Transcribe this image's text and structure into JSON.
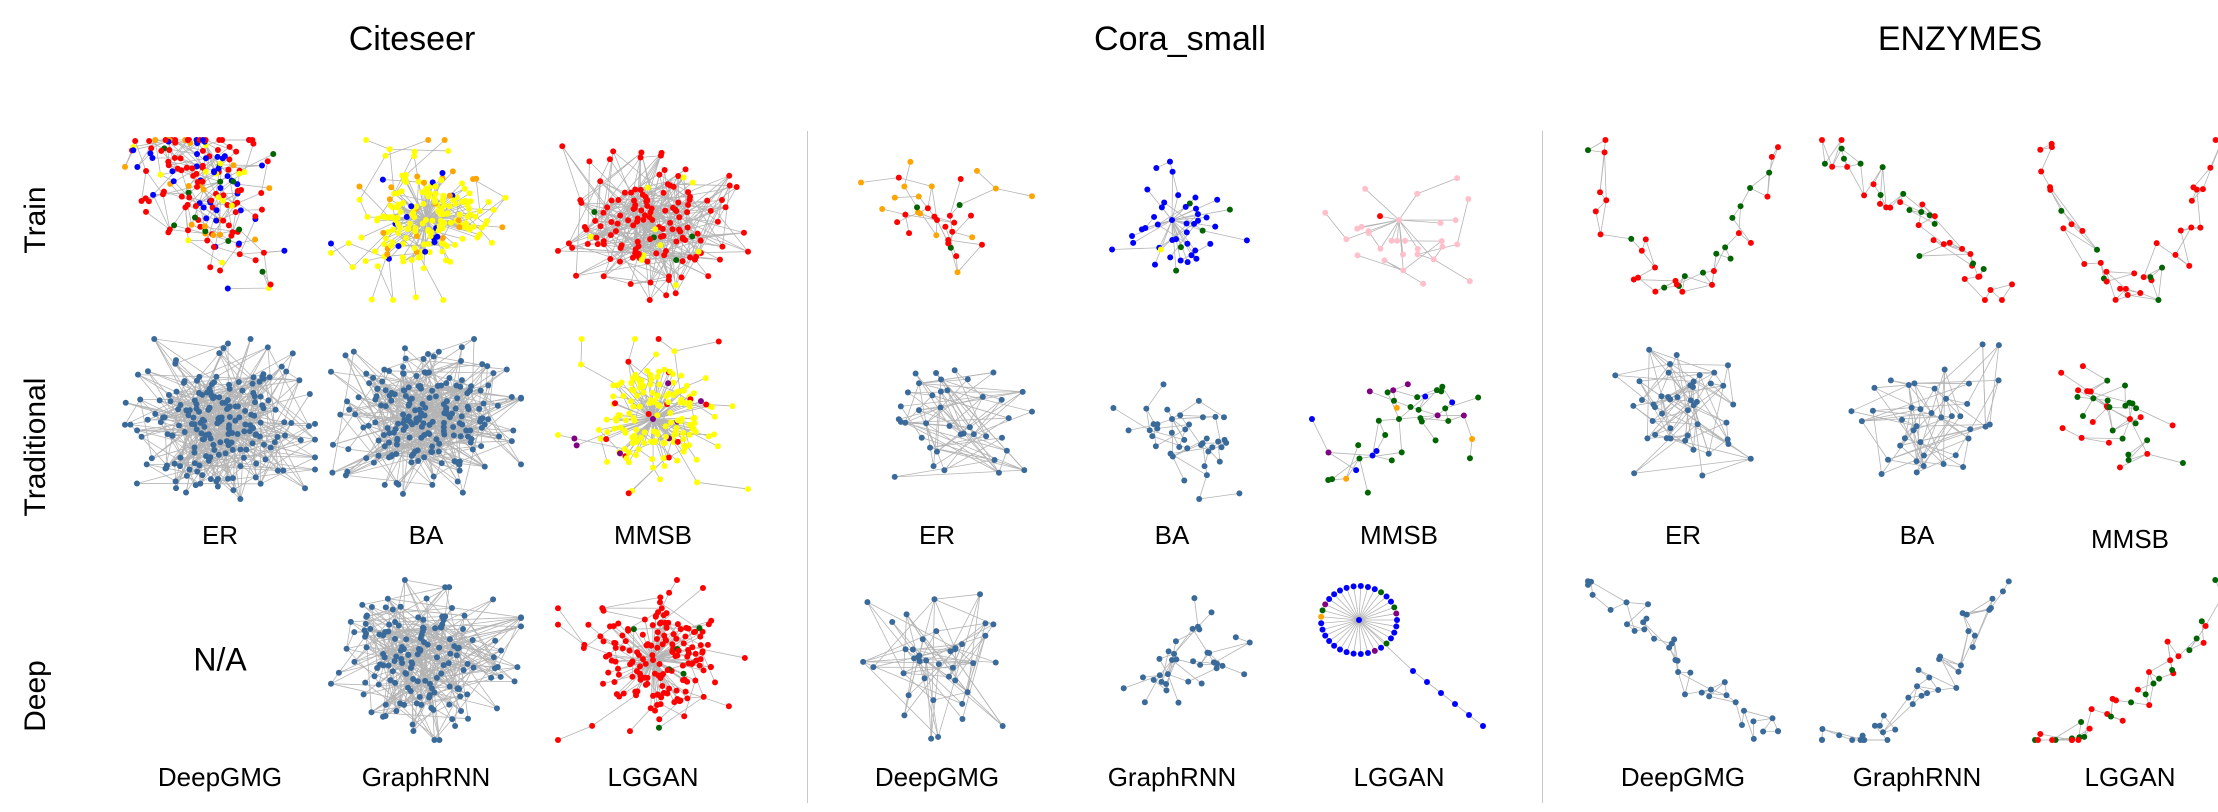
{
  "datasets": [
    "Citeseer",
    "Cora_small",
    "ENZYMES"
  ],
  "rows": [
    "Train",
    "Traditional",
    "Deep"
  ],
  "traditional_methods": [
    "ER",
    "BA",
    "MMSB"
  ],
  "deep_methods": [
    "DeepGMG",
    "GraphRNN",
    "LGGAN"
  ],
  "not_available": "N/A",
  "node_colors": {
    "red": "#ff0000",
    "blue": "#0000ff",
    "yellow": "#ffff00",
    "orange": "#ffa500",
    "green": "#006400",
    "pink": "#ffc0cb",
    "purple": "#800080",
    "steelblue": "#3a6a9a"
  },
  "edge_color": "#b4b4b4",
  "panels": [
    {
      "dataset": "Citeseer",
      "row": "Train",
      "col": 0,
      "colors": {
        "red": 6,
        "blue": 2,
        "green": 1,
        "orange": 1,
        "yellow": 1
      }
    },
    {
      "dataset": "Citeseer",
      "row": "Train",
      "col": 1,
      "colors": {
        "yellow": 8,
        "orange": 1,
        "blue": 1
      }
    },
    {
      "dataset": "Citeseer",
      "row": "Train",
      "col": 2,
      "colors": {
        "red": 9,
        "yellow": 1,
        "green": 0.5
      }
    },
    {
      "dataset": "Citeseer",
      "row": "Traditional",
      "method": "ER",
      "colors": {
        "steelblue": 1
      }
    },
    {
      "dataset": "Citeseer",
      "row": "Traditional",
      "method": "BA",
      "colors": {
        "steelblue": 1
      }
    },
    {
      "dataset": "Citeseer",
      "row": "Traditional",
      "method": "MMSB",
      "colors": {
        "yellow": 8,
        "red": 1,
        "purple": 0.3
      }
    },
    {
      "dataset": "Citeseer",
      "row": "Deep",
      "method": "DeepGMG",
      "colors": {}
    },
    {
      "dataset": "Citeseer",
      "row": "Deep",
      "method": "GraphRNN",
      "colors": {
        "steelblue": 1
      }
    },
    {
      "dataset": "Citeseer",
      "row": "Deep",
      "method": "LGGAN",
      "colors": {
        "red": 9,
        "green": 0.5
      }
    },
    {
      "dataset": "Cora_small",
      "row": "Train",
      "col": 0,
      "colors": {
        "red": 4,
        "orange": 4,
        "green": 1
      }
    },
    {
      "dataset": "Cora_small",
      "row": "Train",
      "col": 1,
      "colors": {
        "blue": 8,
        "green": 1,
        "yellow": 0.5
      }
    },
    {
      "dataset": "Cora_small",
      "row": "Train",
      "col": 2,
      "colors": {
        "pink": 8,
        "purple": 0.5,
        "red": 0.5
      }
    },
    {
      "dataset": "Cora_small",
      "row": "Traditional",
      "method": "ER",
      "colors": {
        "steelblue": 1
      }
    },
    {
      "dataset": "Cora_small",
      "row": "Traditional",
      "method": "BA",
      "colors": {
        "steelblue": 1
      }
    },
    {
      "dataset": "Cora_small",
      "row": "Traditional",
      "method": "MMSB",
      "colors": {
        "green": 6,
        "purple": 1,
        "blue": 1,
        "orange": 0.5
      }
    },
    {
      "dataset": "Cora_small",
      "row": "Deep",
      "method": "DeepGMG",
      "colors": {
        "steelblue": 1
      }
    },
    {
      "dataset": "Cora_small",
      "row": "Deep",
      "method": "GraphRNN",
      "colors": {
        "steelblue": 1
      }
    },
    {
      "dataset": "Cora_small",
      "row": "Deep",
      "method": "LGGAN",
      "colors": {
        "blue": 8,
        "green": 1,
        "orange": 0.5,
        "purple": 0.5
      }
    },
    {
      "dataset": "ENZYMES",
      "row": "Train",
      "col": 0,
      "colors": {
        "red": 5,
        "green": 3
      }
    },
    {
      "dataset": "ENZYMES",
      "row": "Train",
      "col": 1,
      "colors": {
        "red": 5,
        "green": 3
      }
    },
    {
      "dataset": "ENZYMES",
      "row": "Train",
      "col": 2,
      "colors": {
        "red": 7,
        "green": 1
      }
    },
    {
      "dataset": "ENZYMES",
      "row": "Traditional",
      "method": "ER",
      "colors": {
        "steelblue": 1
      }
    },
    {
      "dataset": "ENZYMES",
      "row": "Traditional",
      "method": "BA",
      "colors": {
        "steelblue": 1
      }
    },
    {
      "dataset": "ENZYMES",
      "row": "Traditional",
      "method": "MMSB",
      "colors": {
        "green": 5,
        "red": 5
      }
    },
    {
      "dataset": "ENZYMES",
      "row": "Deep",
      "method": "DeepGMG",
      "colors": {
        "steelblue": 1
      }
    },
    {
      "dataset": "ENZYMES",
      "row": "Deep",
      "method": "GraphRNN",
      "colors": {
        "steelblue": 1
      }
    },
    {
      "dataset": "ENZYMES",
      "row": "Deep",
      "method": "LGGAN",
      "colors": {
        "red": 6,
        "green": 4
      }
    }
  ]
}
